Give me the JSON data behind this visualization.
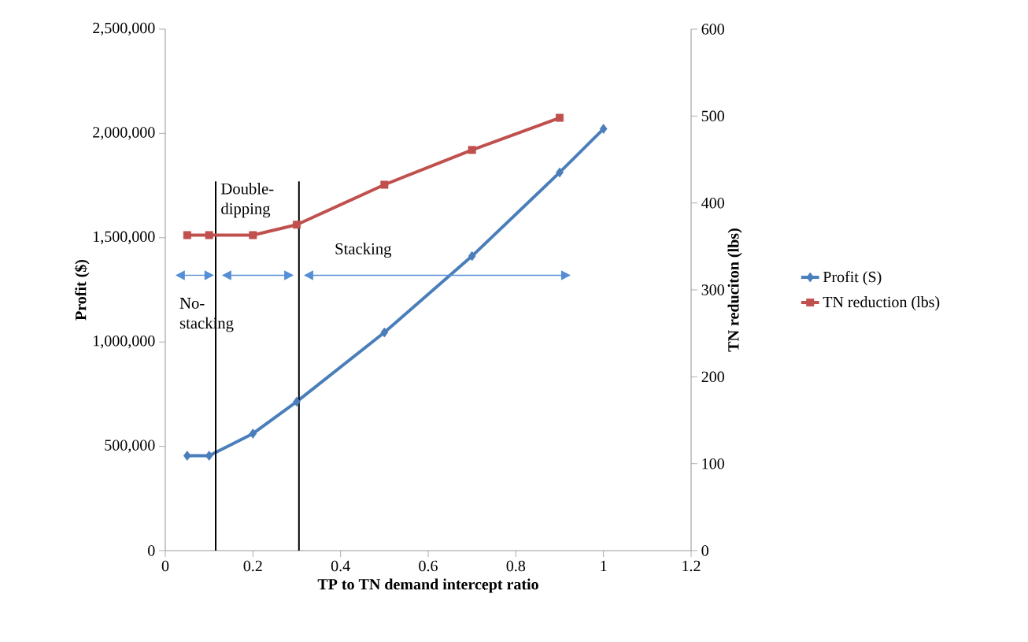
{
  "chart_data": {
    "type": "line",
    "xlabel": "TP to TN demand intercept ratio",
    "ylabel": "Profit ($)",
    "y2label": "TN reduciton (lbs)",
    "xlim": [
      0,
      1.2
    ],
    "xticks": [
      0,
      0.2,
      0.4,
      0.6,
      0.8,
      1,
      1.2
    ],
    "ylim": [
      0,
      2500000
    ],
    "yticks": [
      {
        "value": 0,
        "label": "0"
      },
      {
        "value": 500000,
        "label": "500,000"
      },
      {
        "value": 1000000,
        "label": "1,000,000"
      },
      {
        "value": 1500000,
        "label": "1,500,000"
      },
      {
        "value": 2000000,
        "label": "2,000,000"
      },
      {
        "value": 2500000,
        "label": "2,500,000"
      }
    ],
    "y2lim": [
      0,
      600
    ],
    "y2ticks": [
      0,
      100,
      200,
      300,
      400,
      500,
      600
    ],
    "legend": "right",
    "grid": false,
    "series": [
      {
        "name": "Profit (S)",
        "color": "#4a7ebb",
        "marker": "diamond",
        "x": [
          0.05,
          0.1,
          0.2,
          0.3,
          0.5,
          0.7,
          0.9,
          1.0
        ],
        "values": [
          455000,
          455000,
          561000,
          714000,
          1046000,
          1412000,
          1813000,
          2022000
        ]
      },
      {
        "name": "TN reduction (lbs)",
        "color": "#c0504d",
        "marker": "square",
        "axis": "y2",
        "x": [
          0.05,
          0.1,
          0.2,
          0.3,
          0.5,
          0.7,
          0.9
        ],
        "values": [
          363,
          363,
          363,
          375,
          421,
          461,
          498
        ]
      }
    ],
    "ref_lines": [
      {
        "axis": "x",
        "value": 0.115,
        "color": "#000000"
      },
      {
        "axis": "x",
        "value": 0.305,
        "color": "#000000"
      }
    ],
    "annotations": [
      "No-stacking",
      "Double-dipping",
      "Stacking"
    ]
  }
}
